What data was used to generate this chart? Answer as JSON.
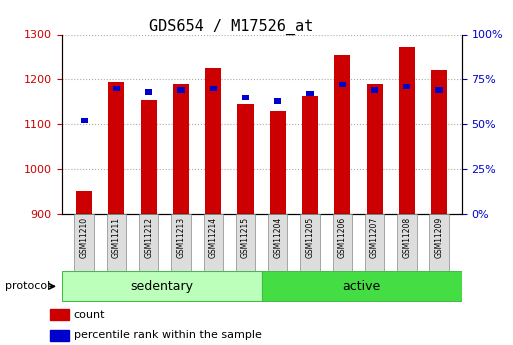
{
  "title": "GDS654 / M17526_at",
  "samples": [
    "GSM11210",
    "GSM11211",
    "GSM11212",
    "GSM11213",
    "GSM11214",
    "GSM11215",
    "GSM11204",
    "GSM11205",
    "GSM11206",
    "GSM11207",
    "GSM11208",
    "GSM11209"
  ],
  "count_values": [
    950,
    1195,
    1155,
    1190,
    1225,
    1145,
    1130,
    1163,
    1255,
    1190,
    1272,
    1220
  ],
  "percentile_values": [
    52,
    70,
    68,
    69,
    70,
    65,
    63,
    67,
    72,
    69,
    71,
    69
  ],
  "ylim_left": [
    900,
    1300
  ],
  "ylim_right": [
    0,
    100
  ],
  "yticks_left": [
    900,
    1000,
    1100,
    1200,
    1300
  ],
  "yticks_right": [
    0,
    25,
    50,
    75,
    100
  ],
  "groups": [
    {
      "label": "sedentary",
      "indices": [
        0,
        1,
        2,
        3,
        4,
        5
      ],
      "color_light": "#bbffbb",
      "color_dark": "#44bb44"
    },
    {
      "label": "active",
      "indices": [
        6,
        7,
        8,
        9,
        10,
        11
      ],
      "color_light": "#44dd44",
      "color_dark": "#44bb44"
    }
  ],
  "bar_color_red": "#cc0000",
  "bar_color_blue": "#0000cc",
  "bar_width": 0.5,
  "grid_color": "#aaaaaa",
  "tick_color_left": "#cc0000",
  "tick_color_right": "#0000cc",
  "protocol_label": "protocol",
  "legend_count": "count",
  "legend_percentile": "percentile rank within the sample",
  "title_fontsize": 11,
  "tick_fontsize": 8,
  "label_fontsize": 8,
  "group_label_fontsize": 9,
  "base_value": 900
}
